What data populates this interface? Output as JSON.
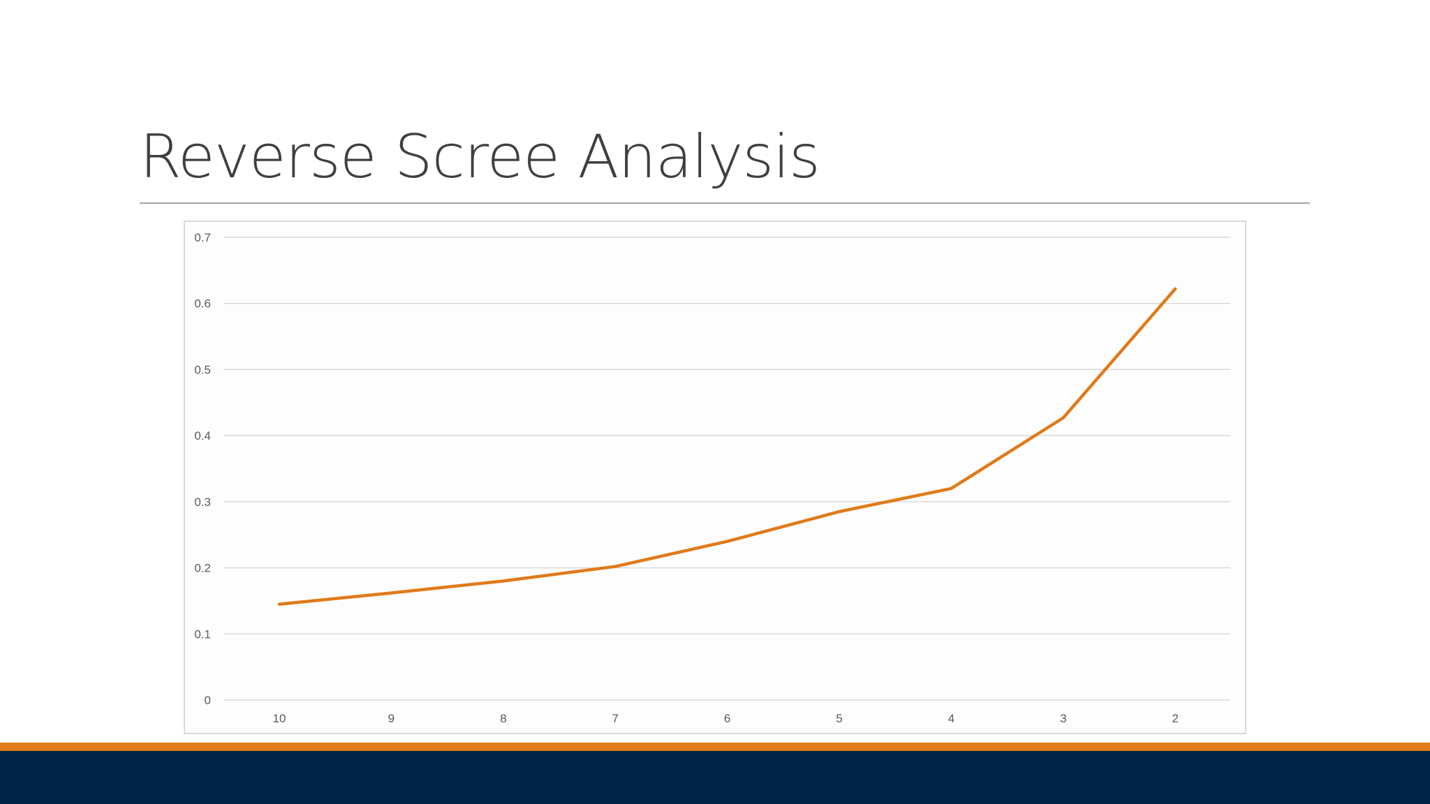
{
  "slide": {
    "title": "Reverse Scree Analysis"
  },
  "colors": {
    "title_text": "#3f3f3f",
    "line": "#e07a1a",
    "accent_bar": "#e07a1a",
    "footer_bar": "#002445",
    "gridline": "#d9d9d9"
  },
  "chart_data": {
    "type": "line",
    "title": "",
    "xlabel": "",
    "ylabel": "",
    "categories": [
      "10",
      "9",
      "8",
      "7",
      "6",
      "5",
      "4",
      "3",
      "2"
    ],
    "series": [
      {
        "values": [
          0.145,
          0.162,
          0.18,
          0.202,
          0.24,
          0.285,
          0.32,
          0.427,
          0.622
        ]
      }
    ],
    "ylim": [
      0,
      0.7
    ],
    "yticks": [
      "0",
      "0.1",
      "0.2",
      "0.3",
      "0.4",
      "0.5",
      "0.6",
      "0.7"
    ],
    "grid": true,
    "legend": "none"
  }
}
